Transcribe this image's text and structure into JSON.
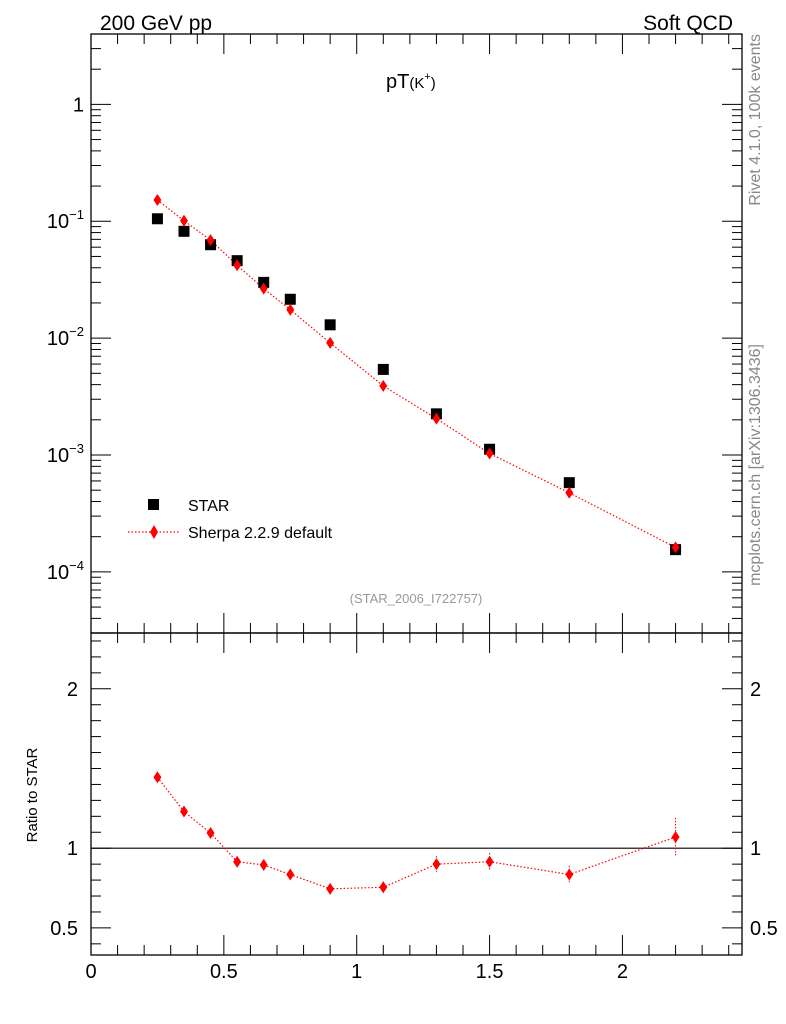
{
  "header": {
    "left": "200 GeV pp",
    "right": "Soft QCD"
  },
  "side": {
    "version": "Rivet 4.1.0,  100k events",
    "source": "mcplots.cern.ch [arXiv:1306.3436]"
  },
  "colors": {
    "data": "#000000",
    "mc": "#ff0000",
    "watermark": "#999999",
    "side_text": "#888888"
  },
  "chart_data": [
    {
      "type": "scatter",
      "panel": "main",
      "title": "pT",
      "title_sub": "(K",
      "title_sup": "+",
      "title_end": ")",
      "watermark": "(STAR_2006_I722757)",
      "yscale": "log",
      "xlim": [
        0,
        2.45
      ],
      "ylim": [
        3e-05,
        4
      ],
      "ytick_labels": [
        {
          "value": 1,
          "base": "1",
          "exp": ""
        },
        {
          "value": 0.1,
          "base": "10",
          "exp": "−1"
        },
        {
          "value": 0.01,
          "base": "10",
          "exp": "−2"
        },
        {
          "value": 0.001,
          "base": "10",
          "exp": "−3"
        },
        {
          "value": 0.0001,
          "base": "10",
          "exp": "−4"
        }
      ],
      "legend": [
        "STAR",
        "Sherpa 2.2.9 default"
      ],
      "series": [
        {
          "name": "STAR",
          "marker": "square",
          "x": [
            0.25,
            0.35,
            0.45,
            0.55,
            0.65,
            0.75,
            0.9,
            1.1,
            1.3,
            1.5,
            1.8,
            2.2
          ],
          "y": [
            0.105,
            0.082,
            0.063,
            0.046,
            0.03,
            0.0215,
            0.013,
            0.0054,
            0.00225,
            0.00112,
            0.00058,
            0.000155
          ]
        },
        {
          "name": "Sherpa 2.2.9 default",
          "marker": "diamond",
          "line": "dotted",
          "x": [
            0.25,
            0.35,
            0.45,
            0.55,
            0.65,
            0.75,
            0.9,
            1.1,
            1.3,
            1.5,
            1.8,
            2.2
          ],
          "y": [
            0.152,
            0.101,
            0.069,
            0.042,
            0.0265,
            0.0175,
            0.0091,
            0.0039,
            0.00205,
            0.00103,
            0.000475,
            0.000162
          ]
        }
      ]
    },
    {
      "type": "scatter",
      "panel": "ratio",
      "ylabel": "Ratio to STAR",
      "xlim": [
        0,
        2.45
      ],
      "ylim": [
        0.33,
        2.35
      ],
      "ytick_labels": [
        "0.5",
        "1",
        "2"
      ],
      "ytick_values": [
        0.5,
        1,
        2
      ],
      "xtick_labels": [
        "0",
        "0.5",
        "1",
        "1.5",
        "2"
      ],
      "xtick_values": [
        0,
        0.5,
        1,
        1.5,
        2
      ],
      "reference": 1,
      "series": [
        {
          "name": "Sherpa 2.2.9 default",
          "marker": "diamond",
          "line": "dotted",
          "x": [
            0.25,
            0.35,
            0.45,
            0.55,
            0.65,
            0.75,
            0.9,
            1.1,
            1.3,
            1.5,
            1.8,
            2.2
          ],
          "y": [
            1.445,
            1.23,
            1.095,
            0.915,
            0.895,
            0.835,
            0.745,
            0.755,
            0.9,
            0.915,
            0.835,
            1.07
          ],
          "err": [
            0.02,
            0.02,
            0.02,
            0.02,
            0.025,
            0.025,
            0.025,
            0.035,
            0.05,
            0.055,
            0.055,
            0.12
          ]
        }
      ]
    }
  ]
}
